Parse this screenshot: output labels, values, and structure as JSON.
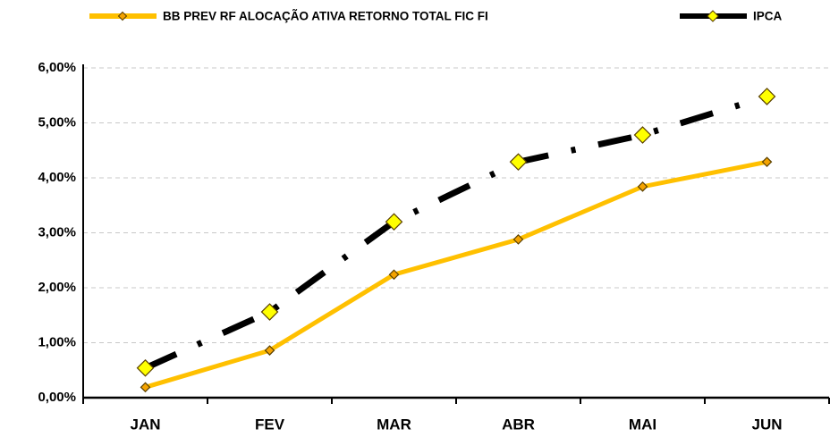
{
  "chart_data": {
    "type": "line",
    "categories": [
      "JAN",
      "FEV",
      "MAR",
      "ABR",
      "MAI",
      "JUN"
    ],
    "series": [
      {
        "name": "BB PREV RF ALOCAÇÃO ATIVA RETORNO TOTAL FIC FI",
        "color": "#FFC000",
        "marker_color": "#F4A300",
        "line_style": "solid",
        "values": [
          0.19,
          0.86,
          2.24,
          2.88,
          3.84,
          4.29
        ]
      },
      {
        "name": "IPCA",
        "color": "#000000",
        "marker_color": "#FFFF00",
        "line_style": "dash-dot",
        "values": [
          0.54,
          1.56,
          3.2,
          4.29,
          4.78,
          5.48
        ]
      }
    ],
    "ylim": [
      0,
      6
    ],
    "yticks": [
      {
        "value": 0,
        "label": "0,00%"
      },
      {
        "value": 1,
        "label": "1,00%"
      },
      {
        "value": 2,
        "label": "2,00%"
      },
      {
        "value": 3,
        "label": "3,00%"
      },
      {
        "value": 4,
        "label": "4,00%"
      },
      {
        "value": 5,
        "label": "5,00%"
      },
      {
        "value": 6,
        "label": "6,00%"
      }
    ],
    "grid": true,
    "legend": "top"
  }
}
